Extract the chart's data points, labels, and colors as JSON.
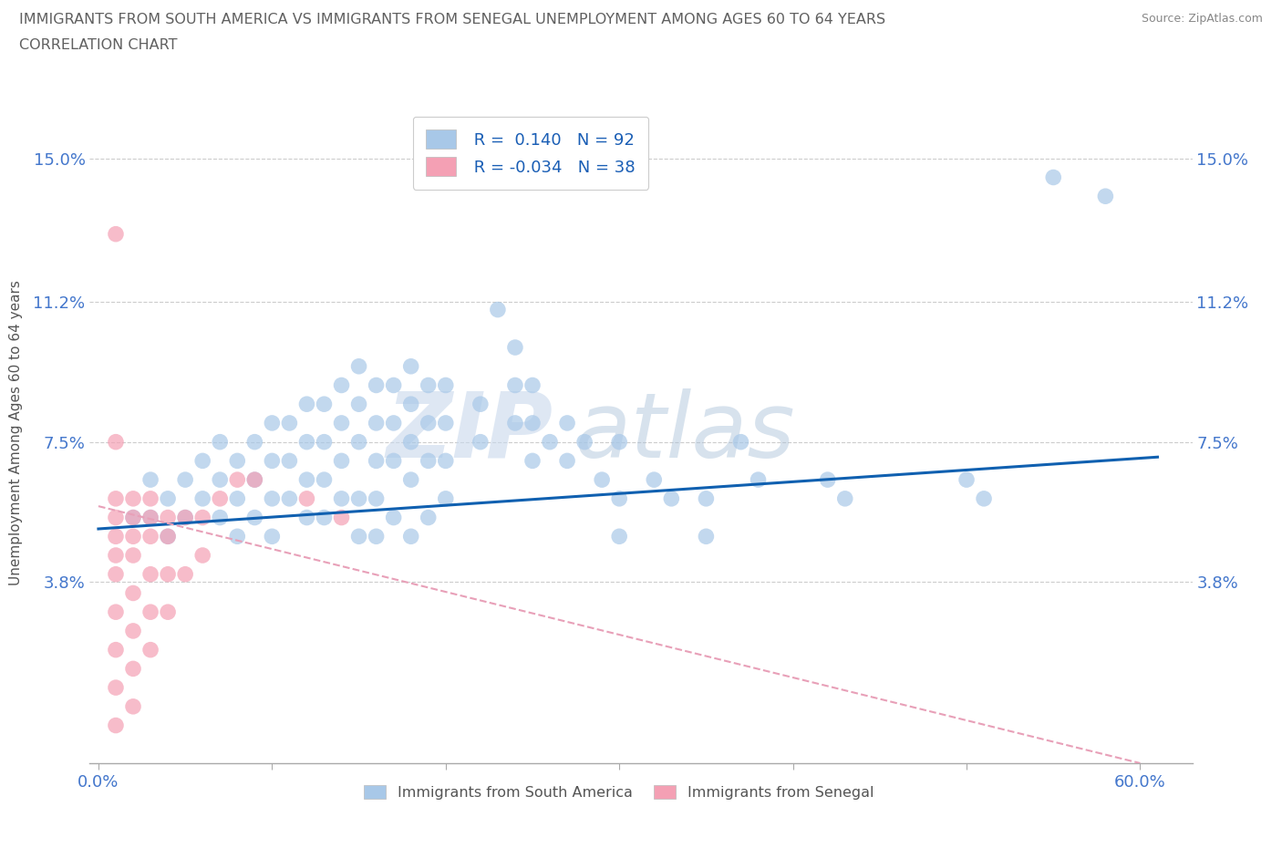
{
  "title_line1": "IMMIGRANTS FROM SOUTH AMERICA VS IMMIGRANTS FROM SENEGAL UNEMPLOYMENT AMONG AGES 60 TO 64 YEARS",
  "title_line2": "CORRELATION CHART",
  "source_text": "Source: ZipAtlas.com",
  "ylabel": "Unemployment Among Ages 60 to 64 years",
  "xlim": [
    -0.005,
    0.63
  ],
  "ylim": [
    -0.01,
    0.165
  ],
  "ytick_positions": [
    0.038,
    0.075,
    0.112,
    0.15
  ],
  "ytick_labels": [
    "3.8%",
    "7.5%",
    "11.2%",
    "15.0%"
  ],
  "R_blue": 0.14,
  "N_blue": 92,
  "R_pink": -0.034,
  "N_pink": 38,
  "blue_color": "#a8c8e8",
  "pink_color": "#f4a0b4",
  "trend_blue_color": "#1060b0",
  "trend_pink_color": "#e8a0b8",
  "watermark_color": "#c8d8ec",
  "watermark_alpha": 0.6,
  "blue_scatter": [
    [
      0.02,
      0.055
    ],
    [
      0.03,
      0.065
    ],
    [
      0.03,
      0.055
    ],
    [
      0.04,
      0.06
    ],
    [
      0.04,
      0.05
    ],
    [
      0.05,
      0.065
    ],
    [
      0.05,
      0.055
    ],
    [
      0.06,
      0.07
    ],
    [
      0.06,
      0.06
    ],
    [
      0.07,
      0.075
    ],
    [
      0.07,
      0.065
    ],
    [
      0.07,
      0.055
    ],
    [
      0.08,
      0.07
    ],
    [
      0.08,
      0.06
    ],
    [
      0.08,
      0.05
    ],
    [
      0.09,
      0.075
    ],
    [
      0.09,
      0.065
    ],
    [
      0.09,
      0.055
    ],
    [
      0.1,
      0.08
    ],
    [
      0.1,
      0.07
    ],
    [
      0.1,
      0.06
    ],
    [
      0.1,
      0.05
    ],
    [
      0.11,
      0.08
    ],
    [
      0.11,
      0.07
    ],
    [
      0.11,
      0.06
    ],
    [
      0.12,
      0.085
    ],
    [
      0.12,
      0.075
    ],
    [
      0.12,
      0.065
    ],
    [
      0.12,
      0.055
    ],
    [
      0.13,
      0.085
    ],
    [
      0.13,
      0.075
    ],
    [
      0.13,
      0.065
    ],
    [
      0.13,
      0.055
    ],
    [
      0.14,
      0.09
    ],
    [
      0.14,
      0.08
    ],
    [
      0.14,
      0.07
    ],
    [
      0.14,
      0.06
    ],
    [
      0.15,
      0.095
    ],
    [
      0.15,
      0.085
    ],
    [
      0.15,
      0.075
    ],
    [
      0.15,
      0.06
    ],
    [
      0.15,
      0.05
    ],
    [
      0.16,
      0.09
    ],
    [
      0.16,
      0.08
    ],
    [
      0.16,
      0.07
    ],
    [
      0.16,
      0.06
    ],
    [
      0.16,
      0.05
    ],
    [
      0.17,
      0.09
    ],
    [
      0.17,
      0.08
    ],
    [
      0.17,
      0.07
    ],
    [
      0.17,
      0.055
    ],
    [
      0.18,
      0.095
    ],
    [
      0.18,
      0.085
    ],
    [
      0.18,
      0.075
    ],
    [
      0.18,
      0.065
    ],
    [
      0.18,
      0.05
    ],
    [
      0.19,
      0.09
    ],
    [
      0.19,
      0.08
    ],
    [
      0.19,
      0.07
    ],
    [
      0.19,
      0.055
    ],
    [
      0.2,
      0.09
    ],
    [
      0.2,
      0.08
    ],
    [
      0.2,
      0.07
    ],
    [
      0.2,
      0.06
    ],
    [
      0.22,
      0.085
    ],
    [
      0.22,
      0.075
    ],
    [
      0.23,
      0.11
    ],
    [
      0.24,
      0.1
    ],
    [
      0.24,
      0.09
    ],
    [
      0.24,
      0.08
    ],
    [
      0.25,
      0.09
    ],
    [
      0.25,
      0.08
    ],
    [
      0.25,
      0.07
    ],
    [
      0.26,
      0.075
    ],
    [
      0.27,
      0.08
    ],
    [
      0.27,
      0.07
    ],
    [
      0.28,
      0.075
    ],
    [
      0.29,
      0.065
    ],
    [
      0.3,
      0.075
    ],
    [
      0.3,
      0.06
    ],
    [
      0.3,
      0.05
    ],
    [
      0.32,
      0.065
    ],
    [
      0.33,
      0.06
    ],
    [
      0.35,
      0.06
    ],
    [
      0.35,
      0.05
    ],
    [
      0.37,
      0.075
    ],
    [
      0.38,
      0.065
    ],
    [
      0.42,
      0.065
    ],
    [
      0.43,
      0.06
    ],
    [
      0.5,
      0.065
    ],
    [
      0.51,
      0.06
    ],
    [
      0.55,
      0.145
    ],
    [
      0.58,
      0.14
    ]
  ],
  "pink_scatter": [
    [
      0.01,
      0.13
    ],
    [
      0.01,
      0.075
    ],
    [
      0.01,
      0.06
    ],
    [
      0.01,
      0.055
    ],
    [
      0.01,
      0.05
    ],
    [
      0.01,
      0.045
    ],
    [
      0.01,
      0.04
    ],
    [
      0.01,
      0.03
    ],
    [
      0.01,
      0.02
    ],
    [
      0.01,
      0.01
    ],
    [
      0.01,
      0.0
    ],
    [
      0.02,
      0.06
    ],
    [
      0.02,
      0.055
    ],
    [
      0.02,
      0.05
    ],
    [
      0.02,
      0.045
    ],
    [
      0.02,
      0.035
    ],
    [
      0.02,
      0.025
    ],
    [
      0.02,
      0.015
    ],
    [
      0.02,
      0.005
    ],
    [
      0.03,
      0.06
    ],
    [
      0.03,
      0.055
    ],
    [
      0.03,
      0.05
    ],
    [
      0.03,
      0.04
    ],
    [
      0.03,
      0.03
    ],
    [
      0.03,
      0.02
    ],
    [
      0.04,
      0.055
    ],
    [
      0.04,
      0.05
    ],
    [
      0.04,
      0.04
    ],
    [
      0.04,
      0.03
    ],
    [
      0.05,
      0.055
    ],
    [
      0.05,
      0.04
    ],
    [
      0.06,
      0.055
    ],
    [
      0.06,
      0.045
    ],
    [
      0.07,
      0.06
    ],
    [
      0.08,
      0.065
    ],
    [
      0.09,
      0.065
    ],
    [
      0.12,
      0.06
    ],
    [
      0.14,
      0.055
    ]
  ],
  "blue_trend_x": [
    0.0,
    0.61
  ],
  "blue_trend_y": [
    0.052,
    0.071
  ],
  "pink_trend_x": [
    0.0,
    0.6
  ],
  "pink_trend_y": [
    0.058,
    -0.01
  ],
  "legend_blue_label": " R =  0.140   N = 92",
  "legend_pink_label": " R = -0.034   N = 38",
  "title_color": "#606060",
  "axis_label_color": "#555555"
}
